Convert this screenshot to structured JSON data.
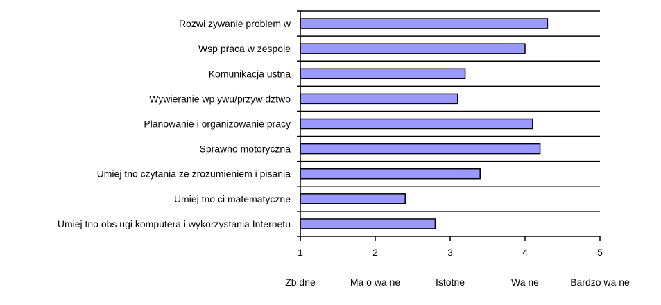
{
  "chart_data": {
    "type": "bar",
    "orientation": "horizontal",
    "title": "",
    "xlabel": "",
    "ylabel": "",
    "categories": [
      "Rozwi zywanie problem w",
      "Wsp praca w zespole",
      "Komunikacja ustna",
      "Wywieranie wp ywu/przyw dztwo",
      "Planowanie i organizowanie pracy",
      "Sprawno motoryczna",
      "Umiej tno czytania ze zrozumieniem i pisania",
      "Umiej tno ci matematyczne",
      "Umiej tno obs ugi komputera i wykorzystania Internetu"
    ],
    "values": [
      4.3,
      4.0,
      3.2,
      3.1,
      4.1,
      4.2,
      3.4,
      2.4,
      2.8
    ],
    "xlim": [
      1,
      5
    ],
    "xticks": [
      "1",
      "2",
      "3",
      "4",
      "5"
    ],
    "scale_labels": [
      "Zb dne",
      "Ma o wa ne",
      "Istotne",
      "Wa ne",
      "Bardzo wa ne"
    ],
    "grid": "horizontal",
    "bar_color": "#9999ff",
    "bar_edge_color": "#000000"
  }
}
